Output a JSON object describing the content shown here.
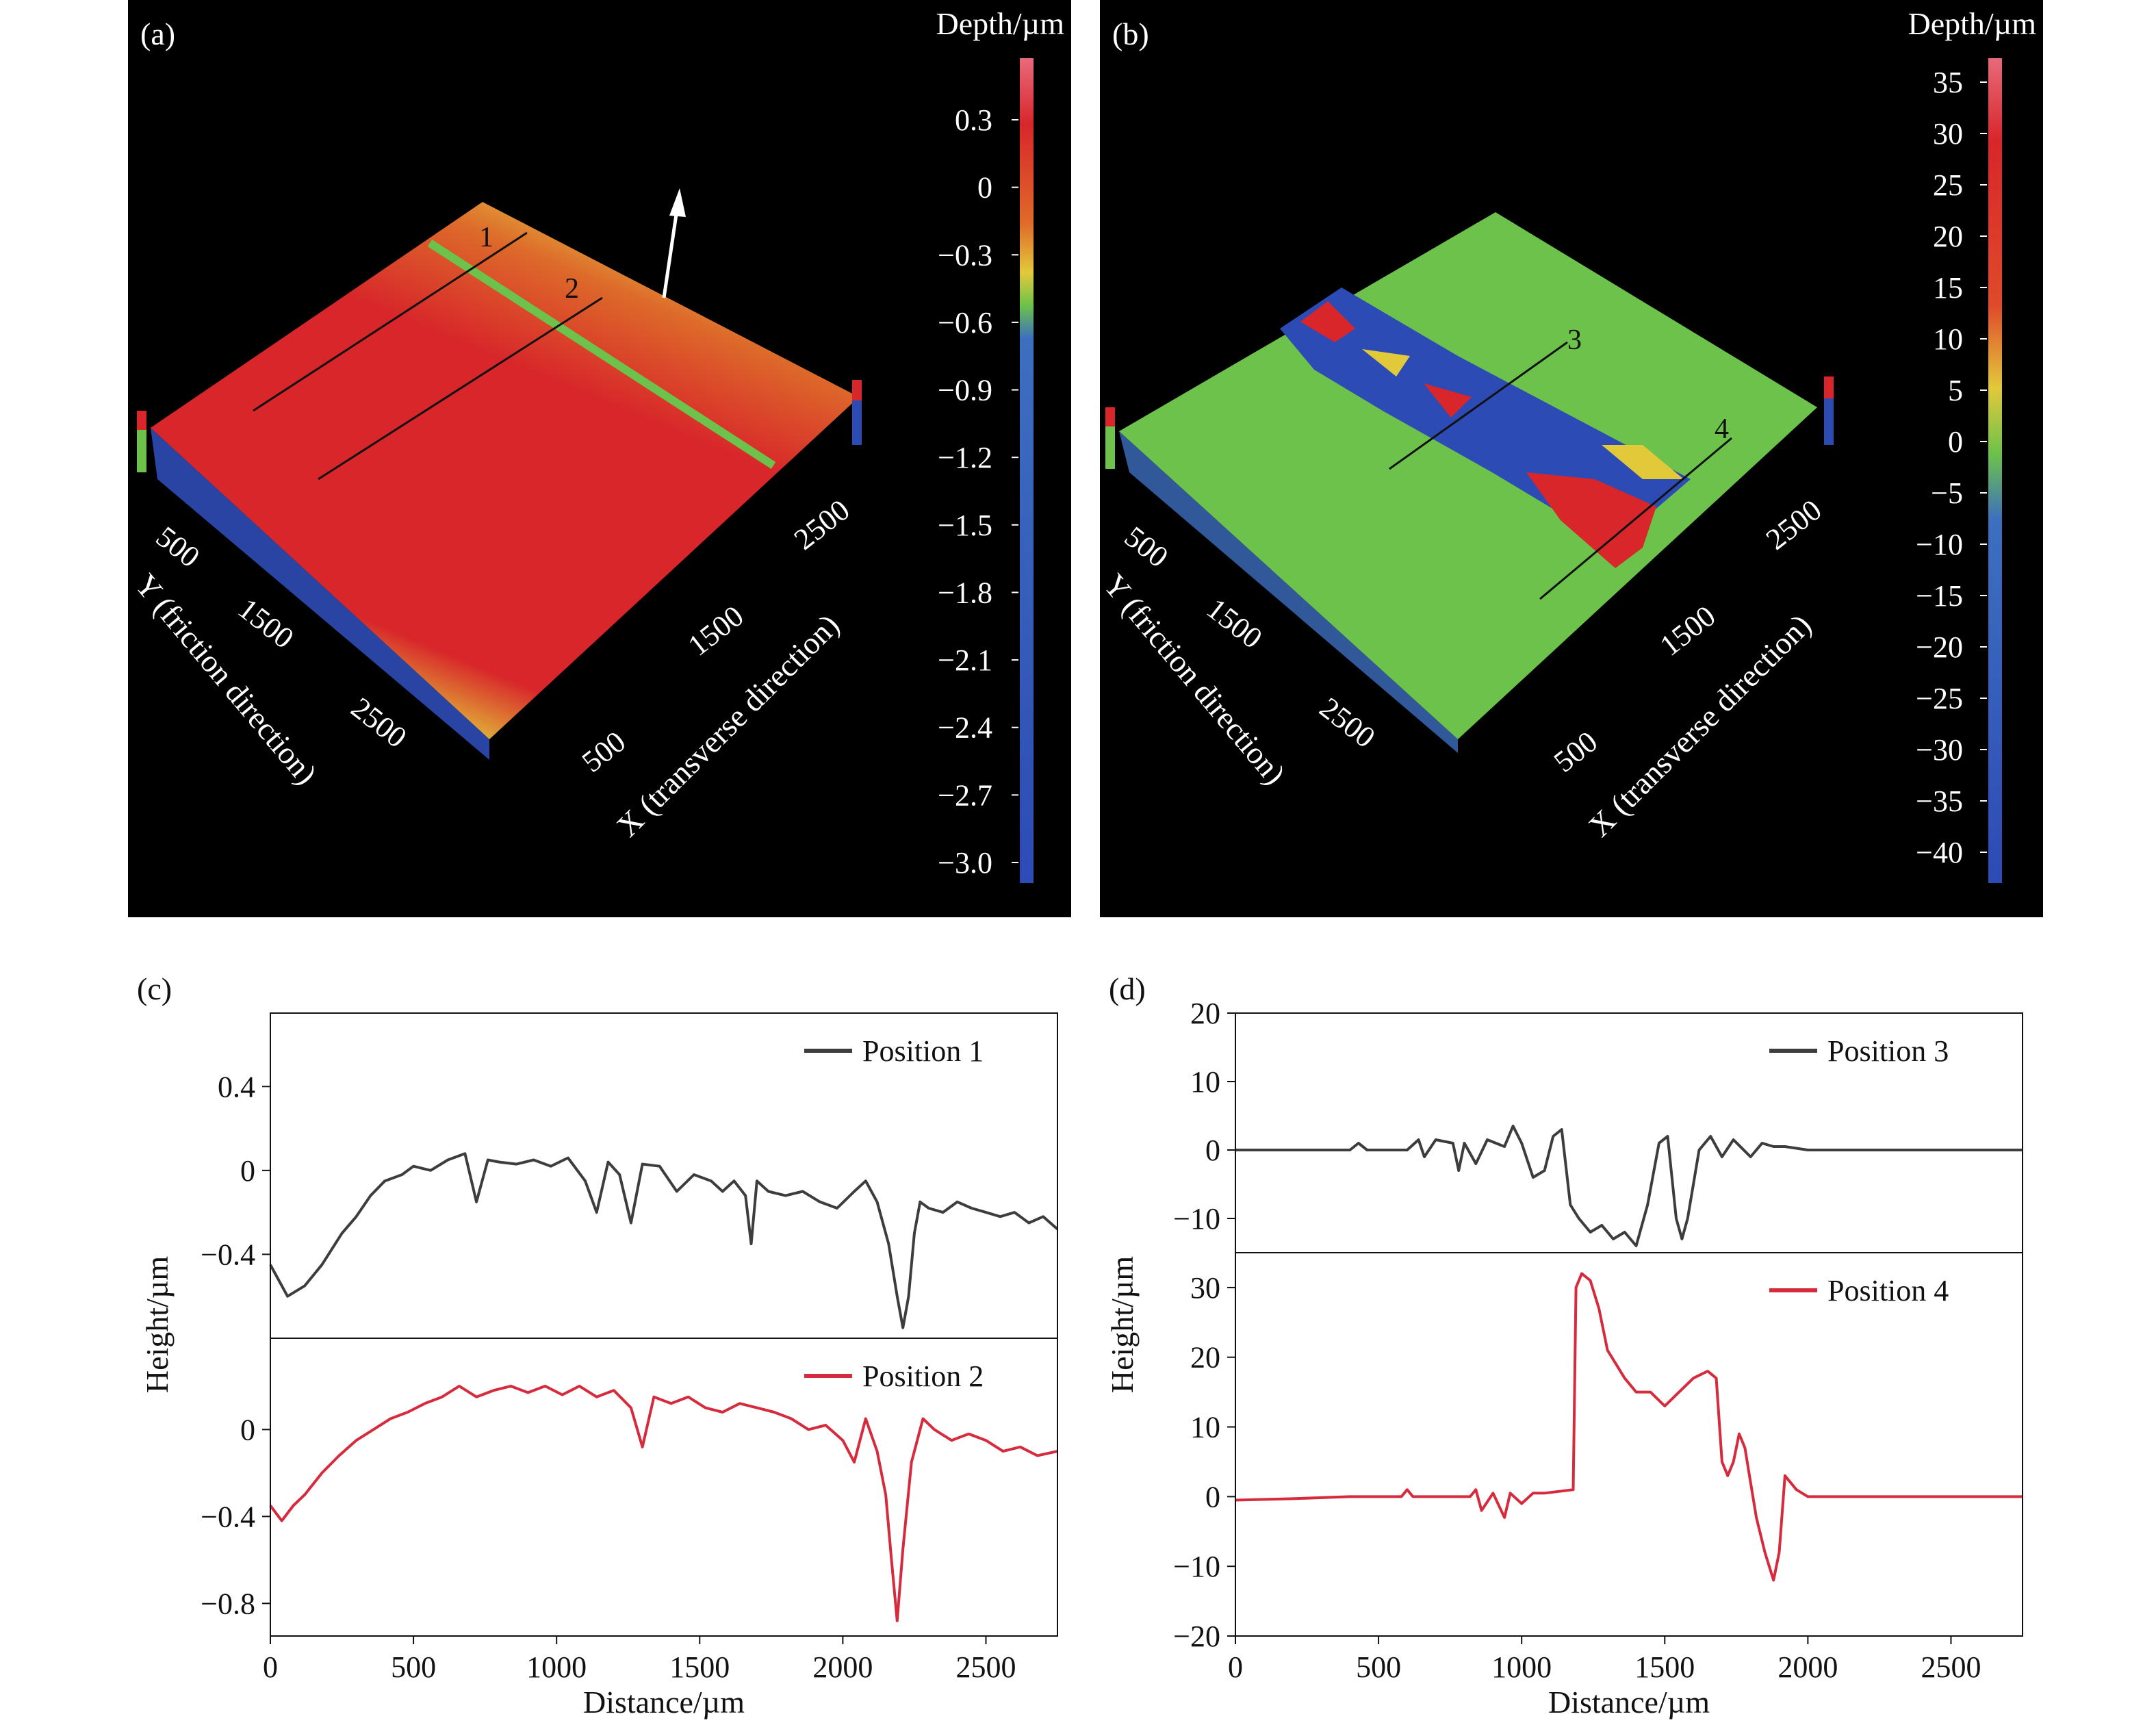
{
  "panels": {
    "a": {
      "label": "(a)",
      "colorbar_title": "Depth/µm",
      "colorbar_ticks": [
        "0.3",
        "0",
        "−0.3",
        "−0.6",
        "−0.9",
        "−1.2",
        "−1.5",
        "−1.8",
        "−2.1",
        "−2.4",
        "−2.7",
        "−3.0"
      ],
      "y_axis_ticks": [
        "500",
        "1500",
        "2500"
      ],
      "y_axis_title": "Y (friction direction)",
      "x_axis_ticks": [
        "500",
        "1500",
        "2500"
      ],
      "x_axis_title": "X (transverse direction)",
      "line_labels": [
        "1",
        "2"
      ]
    },
    "b": {
      "label": "(b)",
      "colorbar_title": "Depth/µm",
      "colorbar_ticks": [
        "35",
        "30",
        "25",
        "20",
        "15",
        "10",
        "5",
        "0",
        "−5",
        "−10",
        "−15",
        "−20",
        "−25",
        "−30",
        "−35",
        "−40"
      ],
      "y_axis_ticks": [
        "500",
        "1500",
        "2500"
      ],
      "y_axis_title": "Y (friction direction)",
      "x_axis_ticks": [
        "500",
        "1500",
        "2500"
      ],
      "x_axis_title": "X (transverse direction)",
      "line_labels": [
        "3",
        "4"
      ]
    },
    "c": {
      "label": "(c)"
    },
    "d": {
      "label": "(d)"
    }
  },
  "colors": {
    "position_dark": "#3d3d3d",
    "position_red": "#d62b3c",
    "map_green": "#6cc24a",
    "map_red": "#d8262a",
    "map_blue": "#2d4bb5",
    "map_yellow": "#e2c93a"
  },
  "chart_data": [
    {
      "type": "line",
      "panel": "c",
      "xlabel": "Distance/µm",
      "ylabel": "Height/µm",
      "xlim": [
        0,
        2750
      ],
      "x_ticks": [
        0,
        500,
        1000,
        1500,
        2000,
        2500
      ],
      "subplots": [
        {
          "ylim": [
            -0.8,
            0.75
          ],
          "y_ticks": [
            0.4,
            0,
            -0.4
          ],
          "series": [
            {
              "name": "Position 1",
              "x": [
                0,
                60,
                120,
                180,
                250,
                300,
                350,
                400,
                460,
                500,
                560,
                620,
                680,
                720,
                760,
                800,
                860,
                920,
                980,
                1040,
                1100,
                1140,
                1180,
                1220,
                1260,
                1300,
                1360,
                1420,
                1480,
                1540,
                1580,
                1620,
                1660,
                1680,
                1700,
                1740,
                1800,
                1860,
                1920,
                1980,
                2040,
                2080,
                2120,
                2160,
                2190,
                2210,
                2230,
                2250,
                2270,
                2300,
                2350,
                2400,
                2450,
                2500,
                2550,
                2600,
                2650,
                2700,
                2750
              ],
              "values": [
                -0.45,
                -0.6,
                -0.55,
                -0.45,
                -0.3,
                -0.22,
                -0.12,
                -0.05,
                -0.02,
                0.02,
                0.0,
                0.05,
                0.08,
                -0.15,
                0.05,
                0.04,
                0.03,
                0.05,
                0.02,
                0.06,
                -0.05,
                -0.2,
                0.04,
                -0.02,
                -0.25,
                0.03,
                0.02,
                -0.1,
                -0.02,
                -0.05,
                -0.1,
                -0.05,
                -0.12,
                -0.35,
                -0.05,
                -0.1,
                -0.12,
                -0.1,
                -0.15,
                -0.18,
                -0.1,
                -0.05,
                -0.15,
                -0.35,
                -0.6,
                -0.75,
                -0.6,
                -0.3,
                -0.15,
                -0.18,
                -0.2,
                -0.15,
                -0.18,
                -0.2,
                -0.22,
                -0.2,
                -0.25,
                -0.22,
                -0.28
              ]
            }
          ]
        },
        {
          "ylim": [
            -0.95,
            0.42
          ],
          "y_ticks": [
            0,
            -0.4,
            -0.8
          ],
          "series": [
            {
              "name": "Position 2",
              "x": [
                0,
                40,
                80,
                120,
                180,
                240,
                300,
                360,
                420,
                480,
                540,
                600,
                660,
                720,
                780,
                840,
                900,
                960,
                1020,
                1080,
                1140,
                1200,
                1260,
                1300,
                1340,
                1400,
                1460,
                1520,
                1580,
                1640,
                1700,
                1760,
                1820,
                1880,
                1940,
                2000,
                2040,
                2080,
                2120,
                2150,
                2170,
                2190,
                2210,
                2240,
                2280,
                2320,
                2380,
                2440,
                2500,
                2560,
                2620,
                2680,
                2750
              ],
              "values": [
                -0.35,
                -0.42,
                -0.35,
                -0.3,
                -0.2,
                -0.12,
                -0.05,
                0.0,
                0.05,
                0.08,
                0.12,
                0.15,
                0.2,
                0.15,
                0.18,
                0.2,
                0.17,
                0.2,
                0.16,
                0.2,
                0.15,
                0.18,
                0.1,
                -0.08,
                0.15,
                0.12,
                0.15,
                0.1,
                0.08,
                0.12,
                0.1,
                0.08,
                0.05,
                0.0,
                0.02,
                -0.05,
                -0.15,
                0.05,
                -0.1,
                -0.3,
                -0.6,
                -0.88,
                -0.55,
                -0.15,
                0.05,
                0.0,
                -0.05,
                -0.02,
                -0.05,
                -0.1,
                -0.08,
                -0.12,
                -0.1
              ]
            }
          ]
        }
      ]
    },
    {
      "type": "line",
      "panel": "d",
      "xlabel": "Distance/µm",
      "ylabel": "Height/µm",
      "xlim": [
        0,
        2750
      ],
      "x_ticks": [
        0,
        500,
        1000,
        1500,
        2000,
        2500
      ],
      "subplots": [
        {
          "ylim": [
            -15,
            20
          ],
          "y_ticks": [
            20,
            10,
            0,
            -10
          ],
          "series": [
            {
              "name": "Position 3",
              "x": [
                0,
                200,
                400,
                430,
                460,
                600,
                640,
                660,
                700,
                760,
                780,
                800,
                840,
                880,
                940,
                970,
                1000,
                1040,
                1080,
                1110,
                1140,
                1170,
                1200,
                1240,
                1280,
                1320,
                1360,
                1400,
                1440,
                1480,
                1510,
                1540,
                1560,
                1580,
                1620,
                1660,
                1700,
                1740,
                1800,
                1840,
                1880,
                1920,
                2000,
                2200,
                2500,
                2750
              ],
              "values": [
                0,
                0,
                0,
                1,
                0,
                0,
                1.5,
                -1,
                1.5,
                1,
                -3,
                1,
                -2,
                1.5,
                0.5,
                3.5,
                1,
                -4,
                -3,
                2,
                3,
                -8,
                -10,
                -12,
                -11,
                -13,
                -12,
                -14,
                -8,
                1,
                2,
                -10,
                -13,
                -10,
                0,
                2,
                -1,
                1.5,
                -1,
                1,
                0.5,
                0.5,
                0,
                0,
                0,
                0
              ]
            }
          ]
        },
        {
          "ylim": [
            -20,
            35
          ],
          "y_ticks": [
            30,
            20,
            10,
            0,
            -10,
            -20
          ],
          "series": [
            {
              "name": "Position 4",
              "x": [
                0,
                200,
                400,
                580,
                600,
                620,
                820,
                840,
                860,
                900,
                940,
                960,
                1000,
                1040,
                1080,
                1180,
                1190,
                1210,
                1240,
                1270,
                1300,
                1330,
                1360,
                1400,
                1450,
                1500,
                1550,
                1600,
                1650,
                1680,
                1700,
                1720,
                1740,
                1760,
                1780,
                1800,
                1820,
                1850,
                1880,
                1900,
                1920,
                1960,
                2000,
                2200,
                2500,
                2750
              ],
              "values": [
                -0.5,
                -0.3,
                0,
                0,
                1,
                0,
                0,
                1,
                -2,
                0.5,
                -3,
                0.5,
                -1,
                0.5,
                0.5,
                1,
                30,
                32,
                31,
                27,
                21,
                19,
                17,
                15,
                15,
                13,
                15,
                17,
                18,
                17,
                5,
                3,
                5,
                9,
                7,
                2,
                -3,
                -8,
                -12,
                -8,
                3,
                1,
                0,
                0,
                0,
                0
              ]
            }
          ]
        }
      ]
    }
  ]
}
